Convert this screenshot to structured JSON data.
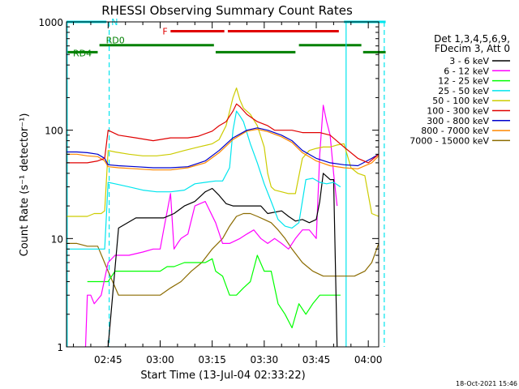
{
  "chart_data": {
    "type": "line",
    "title": "RHESSI Observing Summary Count Rates",
    "xlabel": "Start Time (13-Jul-04 02:33:22)",
    "ylabel": "Count Rate (s⁻¹ detector⁻¹)",
    "y_scale": "log",
    "ylim": [
      1,
      1000
    ],
    "xlim_minutes": [
      0,
      90
    ],
    "x_ticks": [
      {
        "label": "02:45",
        "t": 12
      },
      {
        "label": "03:00",
        "t": 27
      },
      {
        "label": "03:15",
        "t": 42
      },
      {
        "label": "03:30",
        "t": 57
      },
      {
        "label": "03:45",
        "t": 72
      },
      {
        "label": "04:00",
        "t": 87
      }
    ],
    "y_ticks": [
      {
        "label": "1",
        "v": 1
      },
      {
        "label": "10",
        "v": 10
      },
      {
        "label": "100",
        "v": 100
      },
      {
        "label": "1000",
        "v": 1000
      }
    ],
    "legend_header": [
      "Det 1,3,4,5,6,9,",
      "FDecim 3, Att 0"
    ],
    "legend_position": "right",
    "footer_date": "18-Oct-2021 15:46",
    "bars": [
      {
        "label": "N",
        "color": "#00e5ee",
        "y": 1000,
        "segments": [
          [
            0,
            11.5
          ]
        ]
      },
      {
        "label": "",
        "color": "#00e5ee",
        "y": 1000,
        "segments": [
          [
            80,
            92
          ]
        ]
      },
      {
        "label": "F",
        "color": "#e00000",
        "y": 820,
        "segments": [
          [
            30,
            45.5
          ],
          [
            46.5,
            78.5
          ]
        ]
      },
      {
        "label": "RD0",
        "color": "#008000",
        "y": 610,
        "segments": [
          [
            9.5,
            42.5
          ],
          [
            67,
            85
          ]
        ]
      },
      {
        "label": "RD4",
        "color": "#008000",
        "y": 525,
        "segments": [
          [
            0,
            9
          ],
          [
            43,
            66
          ],
          [
            85.5,
            92
          ]
        ]
      }
    ],
    "saa_lines": [
      {
        "color": "#00e5ee",
        "t": 0.2,
        "style": "solid"
      },
      {
        "color": "#00e5ee",
        "t": 12.3,
        "style": "dashed"
      },
      {
        "color": "#00e5ee",
        "t": 80.6,
        "style": "solid"
      },
      {
        "color": "#00e5ee",
        "t": 91.6,
        "style": "dashed"
      }
    ],
    "series": [
      {
        "name": "3 - 6 keV",
        "color": "#000000",
        "x": [
          11,
          12,
          15,
          20,
          24,
          28,
          31,
          34,
          37,
          40,
          42,
          44,
          46,
          48,
          52,
          56,
          58,
          62,
          64,
          66,
          68,
          70,
          72,
          73,
          74,
          76,
          77,
          78
        ],
        "y": [
          0,
          0,
          12.5,
          15.5,
          15.5,
          15.5,
          17,
          20,
          22,
          27,
          29,
          25,
          21,
          20,
          20,
          20,
          17,
          18,
          16,
          14.5,
          15,
          14,
          15,
          22,
          40,
          35,
          35,
          0
        ]
      },
      {
        "name": "6 - 12 keV",
        "color": "#ff00ff",
        "x": [
          5.5,
          6,
          7,
          8,
          10,
          12,
          14,
          18,
          22,
          25,
          27,
          28,
          30,
          31,
          32,
          33,
          35,
          37,
          40,
          43,
          45,
          47,
          50,
          52,
          54,
          56,
          58,
          60,
          62,
          64,
          66,
          68,
          70,
          72,
          73,
          74,
          75,
          76,
          77,
          78
        ],
        "y": [
          1,
          3,
          3,
          2.5,
          3,
          6,
          7,
          7,
          7.5,
          8,
          8,
          12,
          26,
          8,
          9,
          10,
          11,
          20,
          22,
          14,
          9,
          9,
          10,
          11,
          12,
          10,
          9,
          10,
          9,
          8,
          10,
          12,
          12,
          10,
          60,
          170,
          120,
          90,
          40,
          20
        ]
      },
      {
        "name": "12 - 25 keV",
        "color": "#00ff00",
        "x": [
          6,
          7,
          8,
          10,
          12,
          14,
          16,
          20,
          24,
          27,
          29,
          31,
          34,
          36,
          38,
          40,
          42,
          43,
          45,
          47,
          49,
          51,
          53,
          55,
          57,
          59,
          61,
          63,
          65,
          67,
          69,
          71,
          73,
          75,
          77,
          79
        ],
        "y": [
          4,
          4,
          4,
          4,
          4,
          5,
          5,
          5,
          5,
          5,
          5.5,
          5.5,
          6,
          6,
          6,
          6,
          6.5,
          5,
          4.5,
          3,
          3,
          3.5,
          4,
          7,
          5,
          5,
          2.5,
          2,
          1.5,
          2.5,
          2,
          2.5,
          3,
          3,
          3,
          3
        ]
      },
      {
        "name": "25 - 50 keV",
        "color": "#00e5ee",
        "x": [
          0,
          1,
          3,
          5,
          7,
          9,
          11,
          12,
          14,
          18,
          22,
          26,
          30,
          34,
          37,
          40,
          43,
          45,
          47,
          48,
          49,
          50,
          51,
          52,
          53,
          55,
          57,
          59,
          61,
          63,
          65,
          67,
          69,
          71,
          73,
          75,
          77,
          79
        ],
        "y": [
          8,
          8,
          8,
          8,
          8,
          8,
          8,
          33,
          32,
          30,
          28,
          27,
          27,
          28,
          32,
          33,
          34,
          34,
          45,
          100,
          150,
          135,
          120,
          95,
          75,
          50,
          32,
          22,
          15,
          13,
          12.5,
          14,
          35,
          36,
          33,
          32,
          33,
          30
        ]
      },
      {
        "name": "50 - 100 keV",
        "color": "#cccc00",
        "x": [
          0,
          2,
          4,
          6,
          8,
          10,
          11,
          12,
          14,
          18,
          22,
          26,
          30,
          34,
          38,
          42,
          44,
          46,
          48,
          49,
          50,
          51,
          53,
          55,
          57,
          58,
          59,
          60,
          62,
          64,
          66,
          68,
          70,
          72,
          74,
          76,
          78,
          80,
          82,
          84,
          86,
          88,
          90,
          92
        ],
        "y": [
          16,
          16,
          16,
          16,
          17,
          17,
          18,
          65,
          63,
          60,
          58,
          58,
          60,
          65,
          70,
          75,
          82,
          110,
          200,
          245,
          190,
          160,
          140,
          110,
          70,
          40,
          30,
          28,
          27,
          26,
          26,
          55,
          65,
          68,
          70,
          70,
          73,
          75,
          45,
          40,
          38,
          17,
          16,
          35
        ]
      },
      {
        "name": "100 - 300 keV",
        "color": "#e00000",
        "x": [
          0,
          3,
          6,
          9,
          11,
          12,
          15,
          20,
          25,
          30,
          35,
          38,
          42,
          44,
          46,
          48,
          49,
          50,
          52,
          55,
          58,
          60,
          62,
          65,
          68,
          70,
          73,
          76,
          80,
          84,
          87,
          90,
          92
        ],
        "y": [
          50,
          50,
          50,
          52,
          55,
          100,
          90,
          85,
          80,
          85,
          85,
          88,
          98,
          110,
          120,
          150,
          175,
          165,
          140,
          120,
          110,
          100,
          100,
          100,
          95,
          95,
          95,
          90,
          70,
          55,
          50,
          60,
          80
        ]
      },
      {
        "name": "300 - 800 keV",
        "color": "#0000cc",
        "x": [
          0,
          3,
          6,
          9,
          11,
          12,
          15,
          20,
          25,
          30,
          35,
          40,
          44,
          48,
          52,
          55,
          58,
          62,
          65,
          68,
          72,
          76,
          80,
          84,
          88,
          90,
          92
        ],
        "y": [
          63,
          63,
          62,
          60,
          55,
          48,
          47,
          46,
          45,
          45,
          46,
          52,
          65,
          85,
          100,
          105,
          100,
          90,
          80,
          65,
          55,
          50,
          48,
          47,
          55,
          60,
          70
        ]
      },
      {
        "name": "800 - 7000 keV",
        "color": "#ff8800",
        "x": [
          0,
          3,
          6,
          9,
          11,
          12,
          15,
          20,
          25,
          30,
          35,
          40,
          44,
          48,
          52,
          55,
          58,
          62,
          65,
          68,
          72,
          76,
          80,
          84,
          88,
          90,
          92
        ],
        "y": [
          60,
          60,
          58,
          57,
          52,
          46,
          45,
          44,
          43,
          43,
          45,
          50,
          62,
          82,
          98,
          102,
          97,
          87,
          77,
          62,
          52,
          47,
          45,
          44,
          50,
          58,
          68
        ]
      },
      {
        "name": "7000 - 15000 keV",
        "color": "#8b6b00",
        "x": [
          0,
          3,
          6,
          9,
          12,
          15,
          18,
          21,
          24,
          27,
          30,
          33,
          36,
          39,
          42,
          45,
          47,
          49,
          51,
          53,
          55,
          57,
          59,
          61,
          63,
          65,
          68,
          71,
          74,
          77,
          80,
          83,
          86,
          88,
          90,
          92
        ],
        "y": [
          9,
          9,
          8.5,
          8.5,
          5,
          3,
          3,
          3,
          3,
          3,
          3.5,
          4,
          5,
          6,
          8,
          10,
          13,
          16,
          17,
          17,
          16,
          15,
          14,
          12,
          10,
          8,
          6,
          5,
          4.5,
          4.5,
          4.5,
          4.5,
          5,
          6,
          9,
          12
        ]
      }
    ]
  }
}
